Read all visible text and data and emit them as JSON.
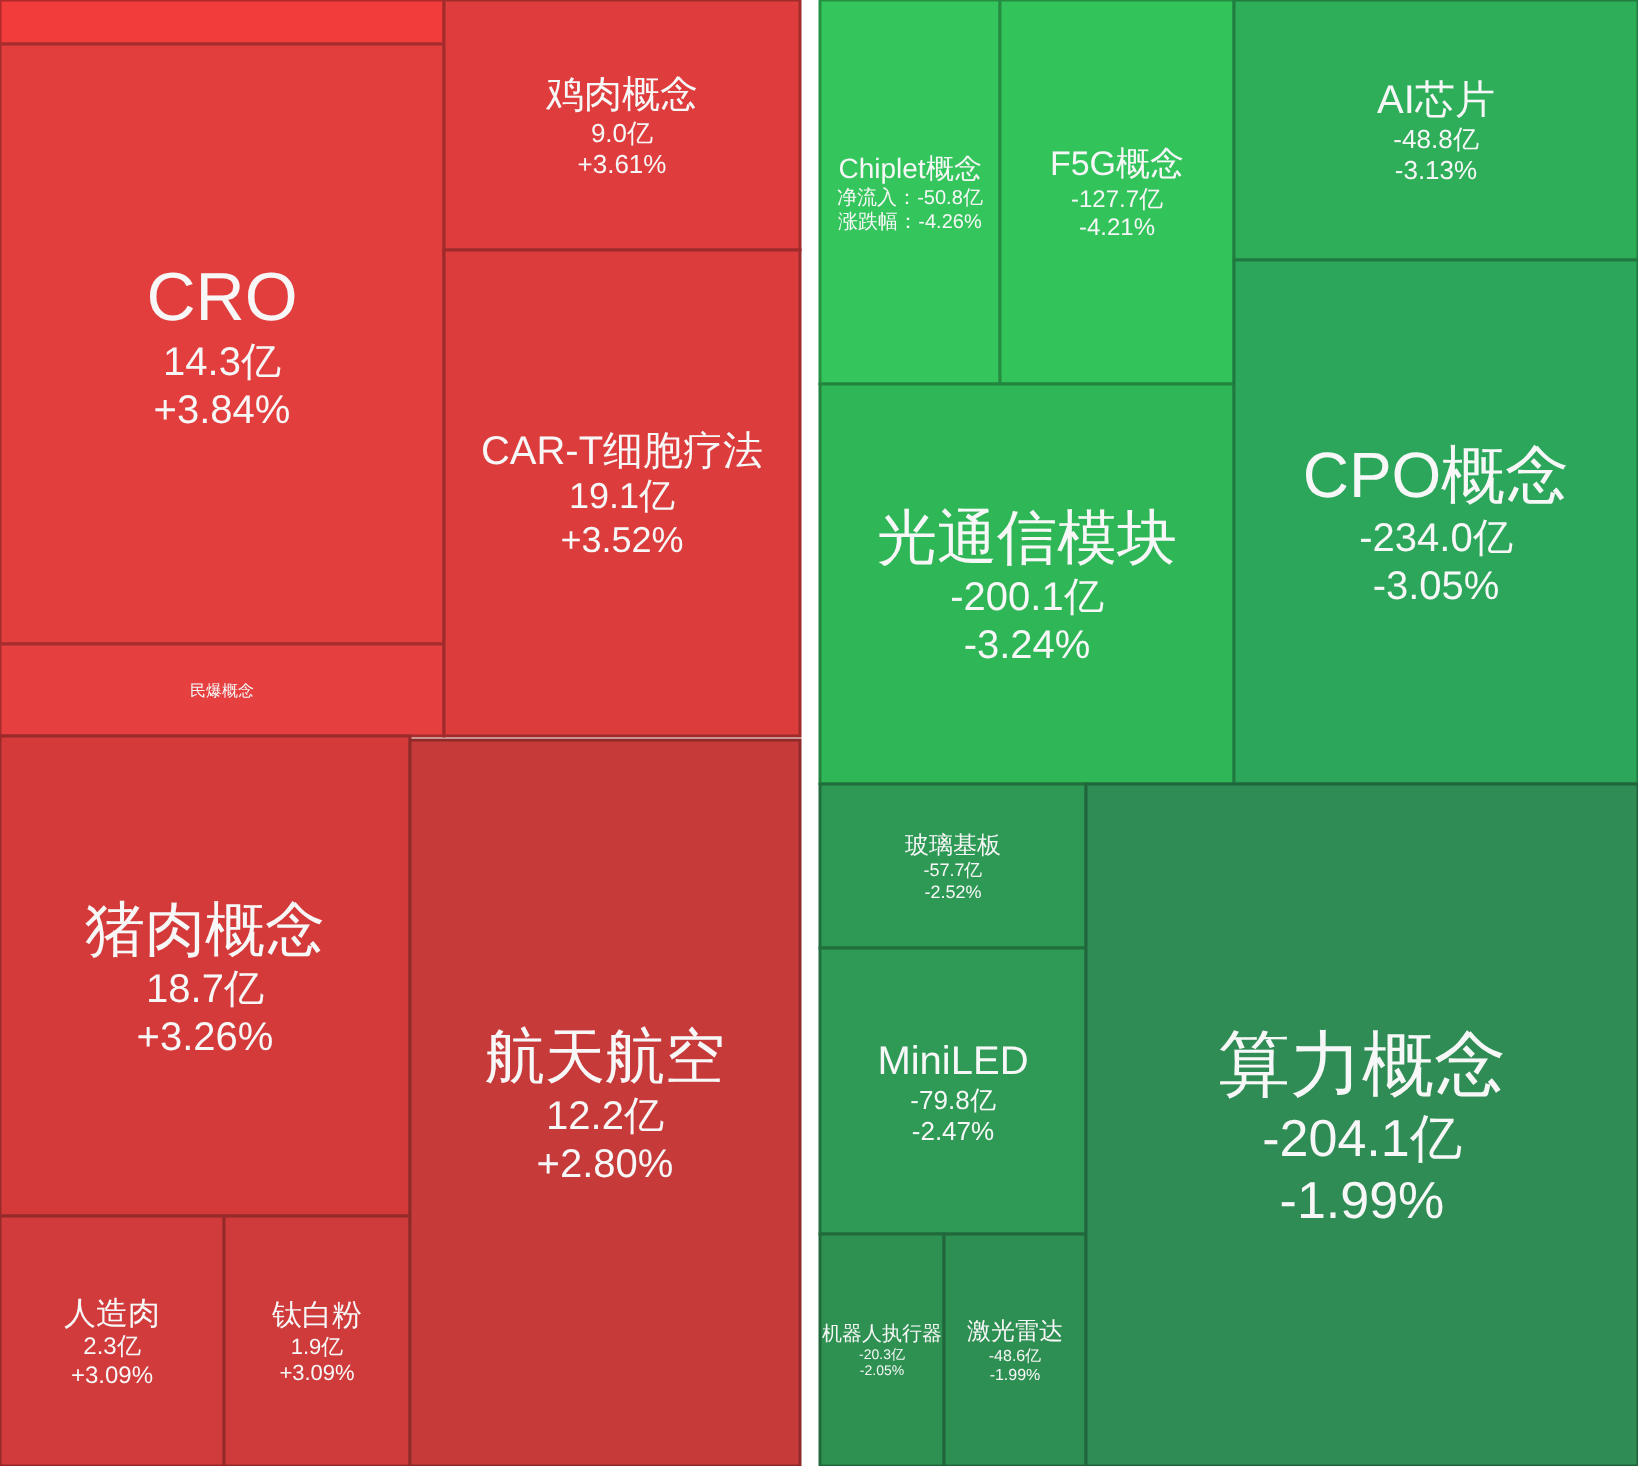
{
  "chart_data": [
    {
      "type": "other",
      "categories": [
        null,
        "CRO",
        "民爆概念",
        "鸡肉概念",
        "CAR-T细胞疗法",
        "猪肉概念",
        "人造肉",
        "钛白粉",
        "航天航空"
      ],
      "series": [
        {
          "colors": [
            "#f23b3b",
            "#e33e3e",
            "#e63f3f",
            "#df3d3d",
            "#dc3c3c",
            "#d43a3a",
            "#d13b3b",
            "#cf3b3b",
            "#c73a3a"
          ],
          "values": [
            null,
            14.3,
            null,
            9.0,
            19.1,
            18.7,
            2.3,
            1.9,
            12.2
          ],
          "value_labels": [
            null,
            "14.3亿",
            null,
            "9.0亿",
            "19.1亿",
            "18.7亿",
            "2.3亿",
            "1.9亿",
            "12.2亿"
          ]
        },
        {
          "values": [
            null,
            3.84,
            null,
            3.61,
            3.52,
            3.26,
            3.09,
            3.09,
            2.8
          ],
          "value_labels": [
            null,
            "+3.84%",
            null,
            "+3.61%",
            "+3.52%",
            "+3.26%",
            "+3.09%",
            "+3.09%",
            "+2.80%"
          ]
        }
      ]
    },
    {
      "type": "other",
      "categories": [
        "Chiplet概念",
        "F5G概念",
        "AI芯片",
        "光通信模块",
        "CPO概念",
        "玻璃基板",
        "MiniLED",
        "机器人执行器",
        "激光雷达",
        "算力概念"
      ],
      "series": [
        {
          "colors": [
            "#34c65c",
            "#33c35b",
            "#2fae5a",
            "#2fb656",
            "#2ca65a",
            "#2e9955",
            "#2e9a55",
            "#2e9151",
            "#2e8f52",
            "#2e8c54"
          ],
          "values": [
            -50.8,
            -127.7,
            -48.8,
            -200.1,
            -234.0,
            -57.7,
            -79.8,
            -20.3,
            -48.6,
            -204.1
          ],
          "value_labels": [
            "净流入：-50.8亿",
            "-127.7亿",
            "-48.8亿",
            "-200.1亿",
            "-234.0亿",
            "-57.7亿",
            "-79.8亿",
            "-20.3亿",
            "-48.6亿",
            "-204.1亿"
          ]
        },
        {
          "values": [
            -4.26,
            -4.21,
            -3.13,
            -3.24,
            -3.05,
            -2.52,
            -2.47,
            -2.05,
            -1.99,
            -1.99
          ],
          "value_labels": [
            "涨跌幅：-4.26%",
            "-4.21%",
            "-3.13%",
            "-3.24%",
            "-3.05%",
            "-2.52%",
            "-2.47%",
            "-2.05%",
            "-1.99%",
            "-1.99%"
          ]
        }
      ]
    }
  ]
}
